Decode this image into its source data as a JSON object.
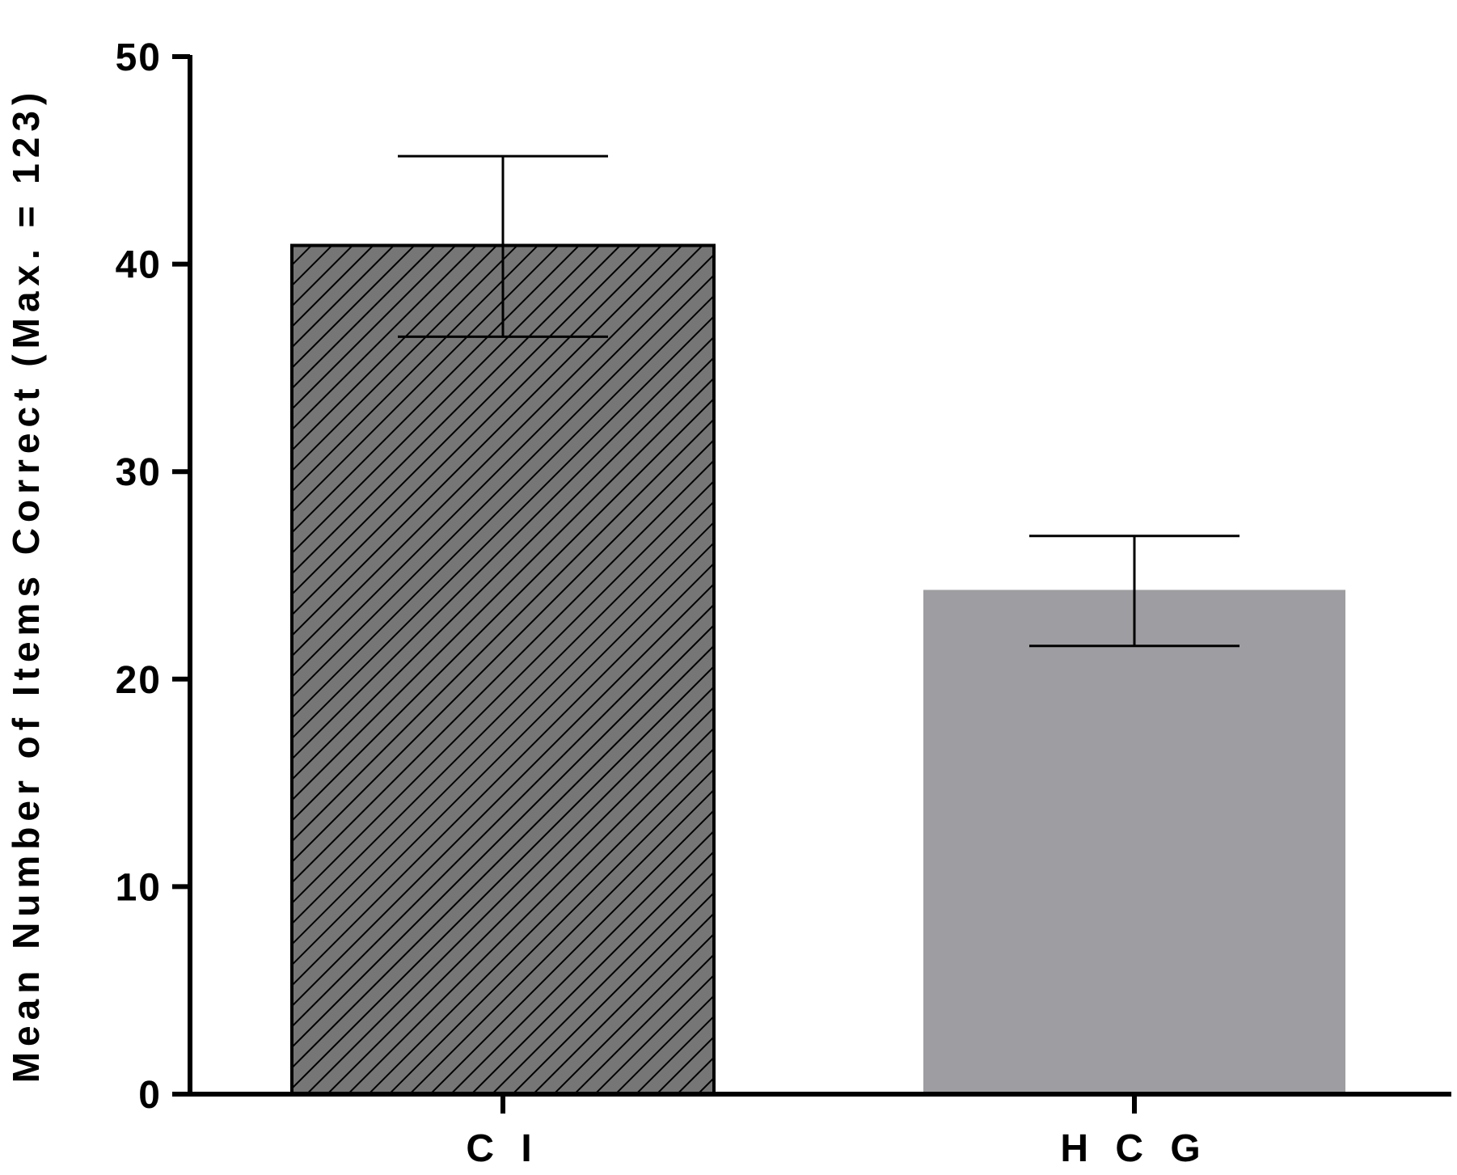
{
  "chart_data": {
    "type": "bar",
    "title": "",
    "xlabel": "",
    "ylabel": "Mean Number of Items Correct (Max. = 123)",
    "ylim": [
      0,
      50
    ],
    "yticks": [
      0,
      10,
      20,
      30,
      40,
      50
    ],
    "ytick_labels": [
      "0",
      "10",
      "20",
      "30",
      "40",
      "50"
    ],
    "categories": [
      "C I",
      "H C G"
    ],
    "values": [
      40.9,
      24.3
    ],
    "error_bars": [
      {
        "lower": 36.5,
        "upper": 45.2
      },
      {
        "lower": 21.6,
        "upper": 26.9
      }
    ],
    "bar_styles": [
      {
        "fill": "#767676",
        "pattern": "diagonal-hatch",
        "outline": "#000000"
      },
      {
        "fill": "#9e9da1",
        "pattern": "none",
        "outline": "none"
      }
    ],
    "grid": false,
    "legend": "none"
  }
}
